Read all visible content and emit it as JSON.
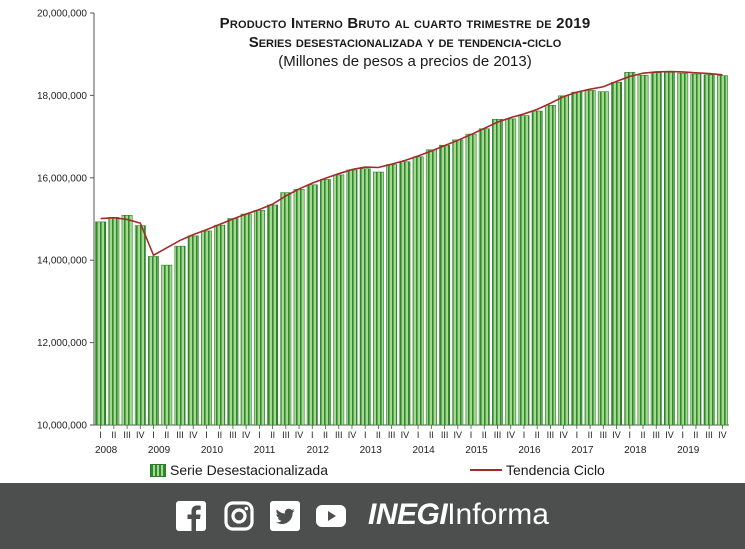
{
  "title": {
    "line1": "Producto Interno Bruto al cuarto trimestre de 2019",
    "line2": "Series desestacionalizada y de tendencia-ciclo",
    "line3": "(Millones de pesos a precios de 2013)"
  },
  "legend": {
    "bars": "Serie Desestacionalizada",
    "line": "Tendencia Ciclo"
  },
  "footer": {
    "icons": [
      "facebook-icon",
      "instagram-icon",
      "twitter-icon",
      "youtube-icon"
    ],
    "brand_bold": "INEGI",
    "brand_regular": "Informa"
  },
  "colors": {
    "bar_fill": "#a6d98f",
    "bar_stripe": "#2f8a2f",
    "trend_line": "#a52a2a",
    "footer_bg": "#4d4f4f"
  },
  "chart_data": {
    "type": "bar",
    "title": "Producto Interno Bruto al cuarto trimestre de 2019",
    "xlabel": "",
    "ylabel": "",
    "ylim": [
      10000000,
      20000000
    ],
    "ytick_labels": [
      "10,000,000",
      "12,000,000",
      "14,000,000",
      "16,000,000",
      "18,000,000",
      "20,000,000"
    ],
    "yticks": [
      10000000,
      12000000,
      14000000,
      16000000,
      18000000,
      20000000
    ],
    "quarter_labels": [
      "I",
      "II",
      "III",
      "IV"
    ],
    "years": [
      "2008",
      "2009",
      "2010",
      "2011",
      "2012",
      "2013",
      "2014",
      "2015",
      "2016",
      "2017",
      "2018",
      "2019"
    ],
    "categories": [
      "2008-I",
      "2008-II",
      "2008-III",
      "2008-IV",
      "2009-I",
      "2009-II",
      "2009-III",
      "2009-IV",
      "2010-I",
      "2010-II",
      "2010-III",
      "2010-IV",
      "2011-I",
      "2011-II",
      "2011-III",
      "2011-IV",
      "2012-I",
      "2012-II",
      "2012-III",
      "2012-IV",
      "2013-I",
      "2013-II",
      "2013-III",
      "2013-IV",
      "2014-I",
      "2014-II",
      "2014-III",
      "2014-IV",
      "2015-I",
      "2015-II",
      "2015-III",
      "2015-IV",
      "2016-I",
      "2016-II",
      "2016-III",
      "2016-IV",
      "2017-I",
      "2017-II",
      "2017-III",
      "2017-IV",
      "2018-I",
      "2018-II",
      "2018-III",
      "2018-IV",
      "2019-I",
      "2019-II",
      "2019-III",
      "2019-IV"
    ],
    "series": [
      {
        "name": "Serie Desestacionalizada",
        "kind": "bar",
        "values": [
          14930000,
          15040000,
          15090000,
          14840000,
          14090000,
          13880000,
          14340000,
          14590000,
          14710000,
          14850000,
          15010000,
          15120000,
          15210000,
          15340000,
          15640000,
          15720000,
          15830000,
          15960000,
          16070000,
          16190000,
          16220000,
          16140000,
          16320000,
          16390000,
          16510000,
          16680000,
          16790000,
          16920000,
          17060000,
          17190000,
          17420000,
          17430000,
          17510000,
          17620000,
          17760000,
          17990000,
          18080000,
          18120000,
          18090000,
          18320000,
          18560000,
          18490000,
          18550000,
          18560000,
          18540000,
          18520000,
          18500000,
          18480000
        ]
      },
      {
        "name": "Tendencia Ciclo",
        "kind": "line",
        "values": [
          15010000,
          15030000,
          14990000,
          14900000,
          14120000,
          14300000,
          14480000,
          14620000,
          14740000,
          14870000,
          15000000,
          15120000,
          15230000,
          15360000,
          15560000,
          15730000,
          15870000,
          15990000,
          16100000,
          16200000,
          16260000,
          16250000,
          16330000,
          16420000,
          16530000,
          16650000,
          16780000,
          16910000,
          17050000,
          17200000,
          17350000,
          17460000,
          17550000,
          17660000,
          17810000,
          17970000,
          18080000,
          18150000,
          18210000,
          18340000,
          18460000,
          18540000,
          18570000,
          18580000,
          18570000,
          18550000,
          18530000,
          18500000
        ]
      }
    ]
  }
}
